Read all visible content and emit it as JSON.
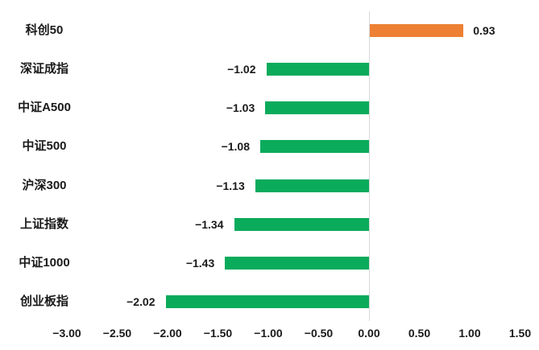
{
  "chart_data": {
    "type": "bar",
    "orientation": "horizontal",
    "title": "",
    "xlabel": "",
    "ylabel": "",
    "categories": [
      "科创50",
      "深证成指",
      "中证A500",
      "中证500",
      "沪深300",
      "上证指数",
      "中证1000",
      "创业板指"
    ],
    "values": [
      0.93,
      -1.02,
      -1.03,
      -1.08,
      -1.13,
      -1.34,
      -1.43,
      -2.02
    ],
    "value_labels": [
      "0.93",
      "−1.02",
      "−1.03",
      "−1.08",
      "−1.13",
      "−1.34",
      "−1.43",
      "−2.02"
    ],
    "x_ticks": [
      {
        "value": -3.0,
        "label": "−3.00"
      },
      {
        "value": -2.5,
        "label": "−2.50"
      },
      {
        "value": -2.0,
        "label": "−2.00"
      },
      {
        "value": -1.5,
        "label": "−1.50"
      },
      {
        "value": -1.0,
        "label": "−1.00"
      },
      {
        "value": -0.5,
        "label": "−0.50"
      },
      {
        "value": 0.0,
        "label": "0.00"
      },
      {
        "value": 0.5,
        "label": "0.50"
      },
      {
        "value": 1.0,
        "label": "1.00"
      },
      {
        "value": 1.5,
        "label": "1.50"
      }
    ],
    "xlim": [
      -3.0,
      1.5
    ],
    "grid": false,
    "legend": "none",
    "colors": {
      "positive_bar": "#ED8033",
      "negative_bar": "#0BAB5C",
      "zero_axis_line": "#D9D9D9",
      "text": "#1A1A1A",
      "background": "#FFFFFF"
    }
  }
}
